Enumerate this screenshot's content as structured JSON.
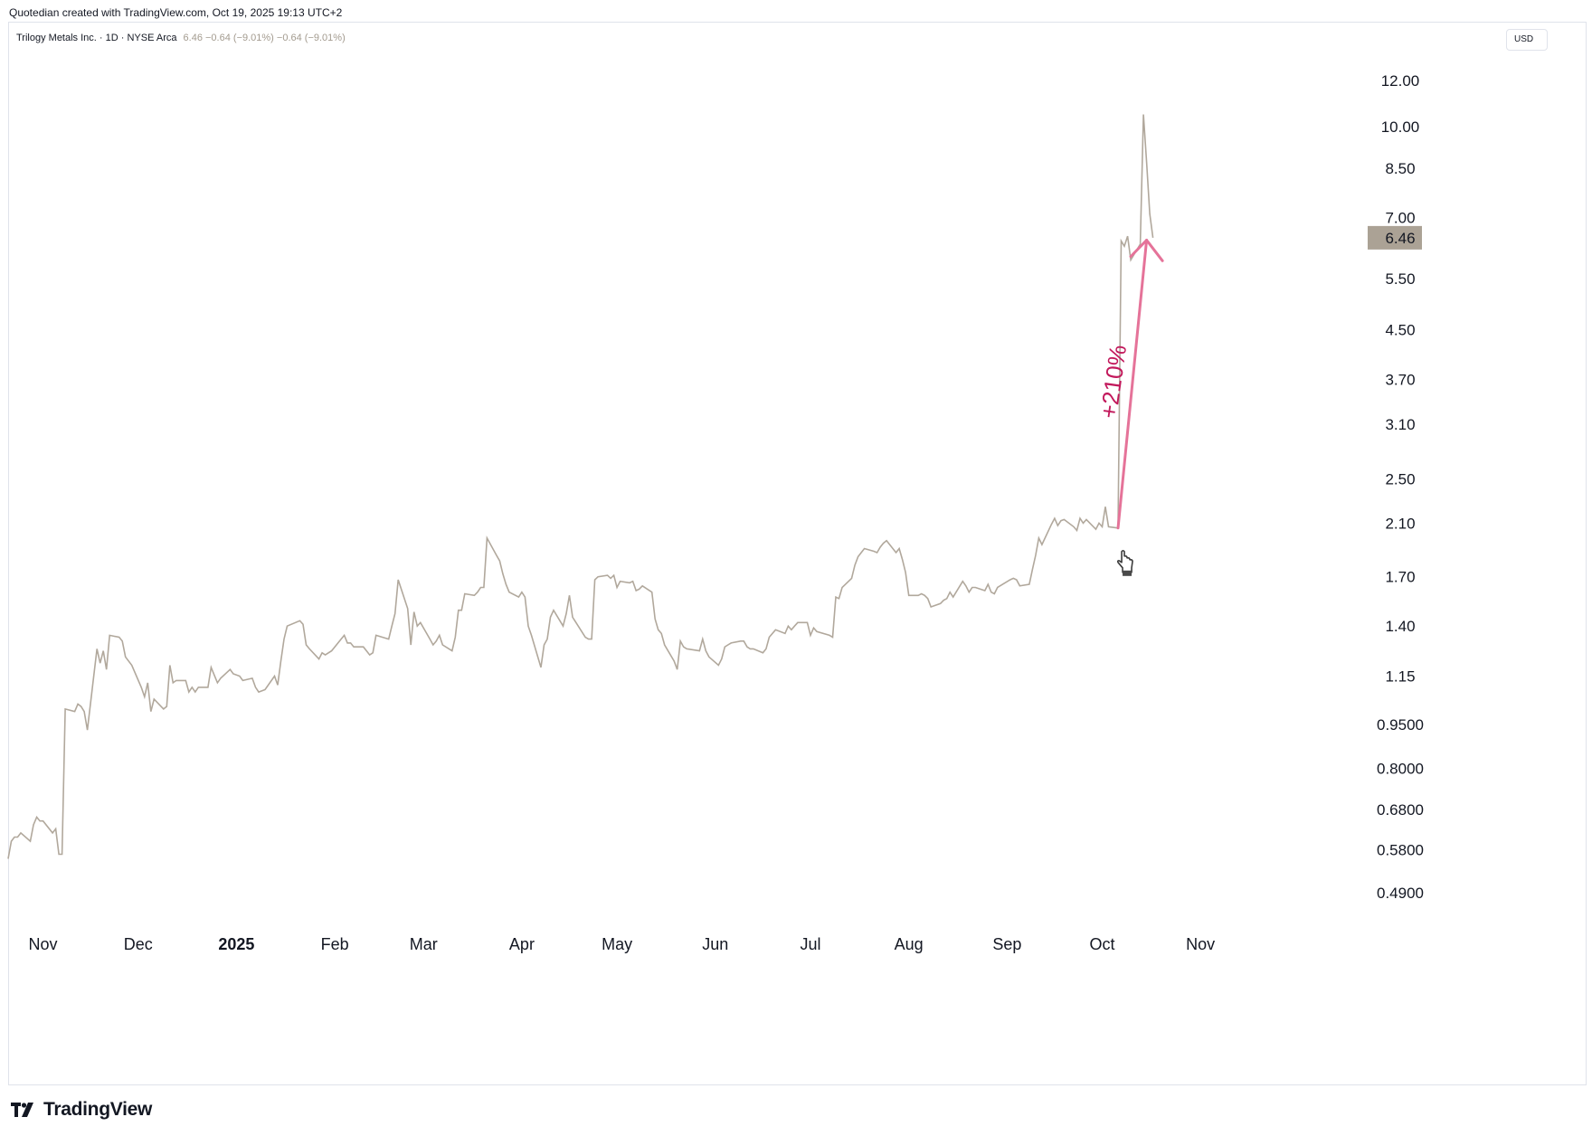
{
  "credit": "Quotedian created with TradingView.com, Oct 19, 2025 19:13 UTC+2",
  "legend": {
    "symbol": "Trilogy Metals Inc. · 1D · NYSE Arca",
    "values": "6.46 −0.64 (−9.01%) −0.64 (−9.01%)"
  },
  "currency": "USD",
  "brand": "TradingView",
  "chart_data": {
    "type": "line",
    "scale": "log",
    "ylim": [
      0.44,
      13.5
    ],
    "grid": false,
    "line_color": "#b1a89c",
    "y_ticks": [
      "12.00",
      "10.00",
      "8.50",
      "7.00",
      "5.50",
      "4.50",
      "3.70",
      "3.10",
      "2.50",
      "2.10",
      "1.70",
      "1.40",
      "1.15",
      "0.9500",
      "0.8000",
      "0.6800",
      "0.5800",
      "0.4900"
    ],
    "x_ticks": [
      {
        "label": "Nov",
        "date": "2024-11-01"
      },
      {
        "label": "Dec",
        "date": "2024-12-01"
      },
      {
        "label": "2025",
        "date": "2025-01-01",
        "year": true
      },
      {
        "label": "Feb",
        "date": "2025-02-01"
      },
      {
        "label": "Mar",
        "date": "2025-03-01"
      },
      {
        "label": "Apr",
        "date": "2025-04-01"
      },
      {
        "label": "May",
        "date": "2025-05-01"
      },
      {
        "label": "Jun",
        "date": "2025-06-01"
      },
      {
        "label": "Jul",
        "date": "2025-07-01"
      },
      {
        "label": "Aug",
        "date": "2025-08-01"
      },
      {
        "label": "Sep",
        "date": "2025-09-01"
      },
      {
        "label": "Oct",
        "date": "2025-10-01"
      },
      {
        "label": "Nov",
        "date": "2025-11-01"
      }
    ],
    "last_value": "6.46",
    "last_value_bg": "#aba295",
    "series": [
      {
        "points": [
          [
            "2024-10-21",
            0.56
          ],
          [
            "2024-10-22",
            0.6
          ],
          [
            "2024-10-23",
            0.61
          ],
          [
            "2024-10-24",
            0.61
          ],
          [
            "2024-10-25",
            0.62
          ],
          [
            "2024-10-28",
            0.6
          ],
          [
            "2024-10-29",
            0.64
          ],
          [
            "2024-10-30",
            0.66
          ],
          [
            "2024-10-31",
            0.65
          ],
          [
            "2024-11-01",
            0.65
          ],
          [
            "2024-11-04",
            0.62
          ],
          [
            "2024-11-05",
            0.63
          ],
          [
            "2024-11-06",
            0.57
          ],
          [
            "2024-11-07",
            0.57
          ],
          [
            "2024-11-08",
            1.01
          ],
          [
            "2024-11-11",
            1.0
          ],
          [
            "2024-11-12",
            1.03
          ],
          [
            "2024-11-13",
            1.02
          ],
          [
            "2024-11-14",
            1.0
          ],
          [
            "2024-11-15",
            0.93
          ],
          [
            "2024-11-18",
            1.28
          ],
          [
            "2024-11-19",
            1.21
          ],
          [
            "2024-11-20",
            1.27
          ],
          [
            "2024-11-21",
            1.18
          ],
          [
            "2024-11-22",
            1.35
          ],
          [
            "2024-11-25",
            1.34
          ],
          [
            "2024-11-26",
            1.32
          ],
          [
            "2024-11-27",
            1.24
          ],
          [
            "2024-11-29",
            1.2
          ],
          [
            "2024-12-02",
            1.1
          ],
          [
            "2024-12-03",
            1.06
          ],
          [
            "2024-12-04",
            1.12
          ],
          [
            "2024-12-05",
            1.0
          ],
          [
            "2024-12-06",
            1.05
          ],
          [
            "2024-12-09",
            1.01
          ],
          [
            "2024-12-10",
            1.02
          ],
          [
            "2024-12-11",
            1.2
          ],
          [
            "2024-12-12",
            1.12
          ],
          [
            "2024-12-13",
            1.13
          ],
          [
            "2024-12-16",
            1.13
          ],
          [
            "2024-12-17",
            1.08
          ],
          [
            "2024-12-18",
            1.1
          ],
          [
            "2024-12-19",
            1.08
          ],
          [
            "2024-12-20",
            1.1
          ],
          [
            "2024-12-23",
            1.1
          ],
          [
            "2024-12-24",
            1.19
          ],
          [
            "2024-12-26",
            1.12
          ],
          [
            "2024-12-27",
            1.14
          ],
          [
            "2024-12-30",
            1.18
          ],
          [
            "2024-12-31",
            1.16
          ],
          [
            "2025-01-02",
            1.15
          ],
          [
            "2025-01-03",
            1.13
          ],
          [
            "2025-01-06",
            1.14
          ],
          [
            "2025-01-07",
            1.1
          ],
          [
            "2025-01-08",
            1.08
          ],
          [
            "2025-01-10",
            1.09
          ],
          [
            "2025-01-13",
            1.15
          ],
          [
            "2025-01-14",
            1.11
          ],
          [
            "2025-01-15",
            1.22
          ],
          [
            "2025-01-16",
            1.33
          ],
          [
            "2025-01-17",
            1.4
          ],
          [
            "2025-01-21",
            1.43
          ],
          [
            "2025-01-22",
            1.41
          ],
          [
            "2025-01-23",
            1.3
          ],
          [
            "2025-01-24",
            1.28
          ],
          [
            "2025-01-27",
            1.23
          ],
          [
            "2025-01-28",
            1.26
          ],
          [
            "2025-01-29",
            1.25
          ],
          [
            "2025-01-30",
            1.26
          ],
          [
            "2025-01-31",
            1.27
          ],
          [
            "2025-02-03",
            1.33
          ],
          [
            "2025-02-04",
            1.35
          ],
          [
            "2025-02-05",
            1.31
          ],
          [
            "2025-02-06",
            1.31
          ],
          [
            "2025-02-07",
            1.29
          ],
          [
            "2025-02-10",
            1.29
          ],
          [
            "2025-02-11",
            1.27
          ],
          [
            "2025-02-12",
            1.25
          ],
          [
            "2025-02-13",
            1.26
          ],
          [
            "2025-02-14",
            1.35
          ],
          [
            "2025-02-18",
            1.33
          ],
          [
            "2025-02-19",
            1.4
          ],
          [
            "2025-02-20",
            1.47
          ],
          [
            "2025-02-21",
            1.68
          ],
          [
            "2025-02-24",
            1.5
          ],
          [
            "2025-02-25",
            1.3
          ],
          [
            "2025-02-26",
            1.48
          ],
          [
            "2025-02-27",
            1.4
          ],
          [
            "2025-02-28",
            1.42
          ],
          [
            "2025-03-03",
            1.33
          ],
          [
            "2025-03-04",
            1.3
          ],
          [
            "2025-03-05",
            1.32
          ],
          [
            "2025-03-06",
            1.35
          ],
          [
            "2025-03-07",
            1.3
          ],
          [
            "2025-03-10",
            1.27
          ],
          [
            "2025-03-11",
            1.34
          ],
          [
            "2025-03-12",
            1.49
          ],
          [
            "2025-03-13",
            1.49
          ],
          [
            "2025-03-14",
            1.59
          ],
          [
            "2025-03-17",
            1.58
          ],
          [
            "2025-03-18",
            1.6
          ],
          [
            "2025-03-19",
            1.63
          ],
          [
            "2025-03-20",
            1.63
          ],
          [
            "2025-03-21",
            1.98
          ],
          [
            "2025-03-24",
            1.85
          ],
          [
            "2025-03-25",
            1.81
          ],
          [
            "2025-03-26",
            1.72
          ],
          [
            "2025-03-27",
            1.65
          ],
          [
            "2025-03-28",
            1.6
          ],
          [
            "2025-03-31",
            1.57
          ],
          [
            "2025-04-01",
            1.6
          ],
          [
            "2025-04-02",
            1.57
          ],
          [
            "2025-04-03",
            1.4
          ],
          [
            "2025-04-04",
            1.35
          ],
          [
            "2025-04-07",
            1.19
          ],
          [
            "2025-04-08",
            1.3
          ],
          [
            "2025-04-09",
            1.33
          ],
          [
            "2025-04-10",
            1.45
          ],
          [
            "2025-04-11",
            1.49
          ],
          [
            "2025-04-14",
            1.4
          ],
          [
            "2025-04-15",
            1.47
          ],
          [
            "2025-04-16",
            1.58
          ],
          [
            "2025-04-17",
            1.45
          ],
          [
            "2025-04-21",
            1.34
          ],
          [
            "2025-04-22",
            1.33
          ],
          [
            "2025-04-23",
            1.33
          ],
          [
            "2025-04-24",
            1.68
          ],
          [
            "2025-04-25",
            1.7
          ],
          [
            "2025-04-28",
            1.71
          ],
          [
            "2025-04-29",
            1.69
          ],
          [
            "2025-04-30",
            1.71
          ],
          [
            "2025-05-01",
            1.63
          ],
          [
            "2025-05-02",
            1.67
          ],
          [
            "2025-05-05",
            1.66
          ],
          [
            "2025-05-06",
            1.67
          ],
          [
            "2025-05-07",
            1.61
          ],
          [
            "2025-05-08",
            1.62
          ],
          [
            "2025-05-09",
            1.64
          ],
          [
            "2025-05-12",
            1.6
          ],
          [
            "2025-05-13",
            1.44
          ],
          [
            "2025-05-14",
            1.38
          ],
          [
            "2025-05-15",
            1.36
          ],
          [
            "2025-05-16",
            1.3
          ],
          [
            "2025-05-19",
            1.22
          ],
          [
            "2025-05-20",
            1.18
          ],
          [
            "2025-05-21",
            1.32
          ],
          [
            "2025-05-22",
            1.29
          ],
          [
            "2025-05-23",
            1.28
          ],
          [
            "2025-05-27",
            1.27
          ],
          [
            "2025-05-28",
            1.33
          ],
          [
            "2025-05-29",
            1.27
          ],
          [
            "2025-05-30",
            1.24
          ],
          [
            "2025-06-02",
            1.2
          ],
          [
            "2025-06-03",
            1.23
          ],
          [
            "2025-06-04",
            1.29
          ],
          [
            "2025-06-05",
            1.3
          ],
          [
            "2025-06-06",
            1.31
          ],
          [
            "2025-06-09",
            1.32
          ],
          [
            "2025-06-10",
            1.32
          ],
          [
            "2025-06-11",
            1.29
          ],
          [
            "2025-06-12",
            1.28
          ],
          [
            "2025-06-13",
            1.28
          ],
          [
            "2025-06-16",
            1.26
          ],
          [
            "2025-06-17",
            1.28
          ],
          [
            "2025-06-18",
            1.34
          ],
          [
            "2025-06-20",
            1.38
          ],
          [
            "2025-06-23",
            1.36
          ],
          [
            "2025-06-24",
            1.4
          ],
          [
            "2025-06-25",
            1.38
          ],
          [
            "2025-06-26",
            1.4
          ],
          [
            "2025-06-27",
            1.42
          ],
          [
            "2025-06-30",
            1.42
          ],
          [
            "2025-07-01",
            1.35
          ],
          [
            "2025-07-02",
            1.39
          ],
          [
            "2025-07-03",
            1.37
          ],
          [
            "2025-07-07",
            1.35
          ],
          [
            "2025-07-08",
            1.34
          ],
          [
            "2025-07-09",
            1.57
          ],
          [
            "2025-07-10",
            1.56
          ],
          [
            "2025-07-11",
            1.63
          ],
          [
            "2025-07-14",
            1.69
          ],
          [
            "2025-07-15",
            1.78
          ],
          [
            "2025-07-16",
            1.84
          ],
          [
            "2025-07-17",
            1.87
          ],
          [
            "2025-07-18",
            1.9
          ],
          [
            "2025-07-21",
            1.88
          ],
          [
            "2025-07-22",
            1.87
          ],
          [
            "2025-07-23",
            1.91
          ],
          [
            "2025-07-24",
            1.94
          ],
          [
            "2025-07-25",
            1.96
          ],
          [
            "2025-07-28",
            1.87
          ],
          [
            "2025-07-29",
            1.9
          ],
          [
            "2025-07-30",
            1.82
          ],
          [
            "2025-07-31",
            1.73
          ],
          [
            "2025-08-01",
            1.58
          ],
          [
            "2025-08-04",
            1.58
          ],
          [
            "2025-08-05",
            1.59
          ],
          [
            "2025-08-06",
            1.58
          ],
          [
            "2025-08-07",
            1.56
          ],
          [
            "2025-08-08",
            1.51
          ],
          [
            "2025-08-11",
            1.53
          ],
          [
            "2025-08-12",
            1.55
          ],
          [
            "2025-08-13",
            1.56
          ],
          [
            "2025-08-14",
            1.6
          ],
          [
            "2025-08-15",
            1.57
          ],
          [
            "2025-08-18",
            1.67
          ],
          [
            "2025-08-19",
            1.64
          ],
          [
            "2025-08-20",
            1.6
          ],
          [
            "2025-08-21",
            1.63
          ],
          [
            "2025-08-22",
            1.63
          ],
          [
            "2025-08-25",
            1.61
          ],
          [
            "2025-08-26",
            1.65
          ],
          [
            "2025-08-27",
            1.6
          ],
          [
            "2025-08-28",
            1.59
          ],
          [
            "2025-08-29",
            1.63
          ],
          [
            "2025-09-02",
            1.68
          ],
          [
            "2025-09-03",
            1.69
          ],
          [
            "2025-09-04",
            1.68
          ],
          [
            "2025-09-05",
            1.64
          ],
          [
            "2025-09-08",
            1.65
          ],
          [
            "2025-09-09",
            1.75
          ],
          [
            "2025-09-10",
            1.85
          ],
          [
            "2025-09-11",
            1.98
          ],
          [
            "2025-09-12",
            1.93
          ],
          [
            "2025-09-15",
            2.09
          ],
          [
            "2025-09-16",
            2.14
          ],
          [
            "2025-09-17",
            2.08
          ],
          [
            "2025-09-18",
            2.12
          ],
          [
            "2025-09-19",
            2.13
          ],
          [
            "2025-09-22",
            2.07
          ],
          [
            "2025-09-23",
            2.04
          ],
          [
            "2025-09-24",
            2.14
          ],
          [
            "2025-09-25",
            2.1
          ],
          [
            "2025-09-26",
            2.13
          ],
          [
            "2025-09-29",
            2.05
          ],
          [
            "2025-09-30",
            2.1
          ],
          [
            "2025-10-01",
            2.07
          ],
          [
            "2025-10-02",
            2.24
          ],
          [
            "2025-10-03",
            2.07
          ],
          [
            "2025-10-06",
            2.06
          ],
          [
            "2025-10-07",
            6.38
          ],
          [
            "2025-10-08",
            6.25
          ],
          [
            "2025-10-09",
            6.5
          ],
          [
            "2025-10-10",
            5.92
          ],
          [
            "2025-10-13",
            6.3
          ],
          [
            "2025-10-14",
            10.5
          ],
          [
            "2025-10-15",
            8.7
          ],
          [
            "2025-10-16",
            7.1
          ],
          [
            "2025-10-17",
            6.46
          ]
        ]
      }
    ]
  },
  "annotation": {
    "label": "+210%",
    "color": "#c2185b",
    "arrow_color": "#e57399",
    "from": [
      "2025-10-06",
      2.06
    ],
    "to": [
      "2025-10-15",
      6.4
    ],
    "head_left": [
      "2025-10-10",
      6.0
    ],
    "head_right": [
      "2025-10-20",
      5.9
    ],
    "label_at": [
      "2025-10-07",
      3.65
    ]
  },
  "cursor_icon": "hand-pointer-icon",
  "cursor_at": [
    "2025-10-08",
    1.78
  ]
}
